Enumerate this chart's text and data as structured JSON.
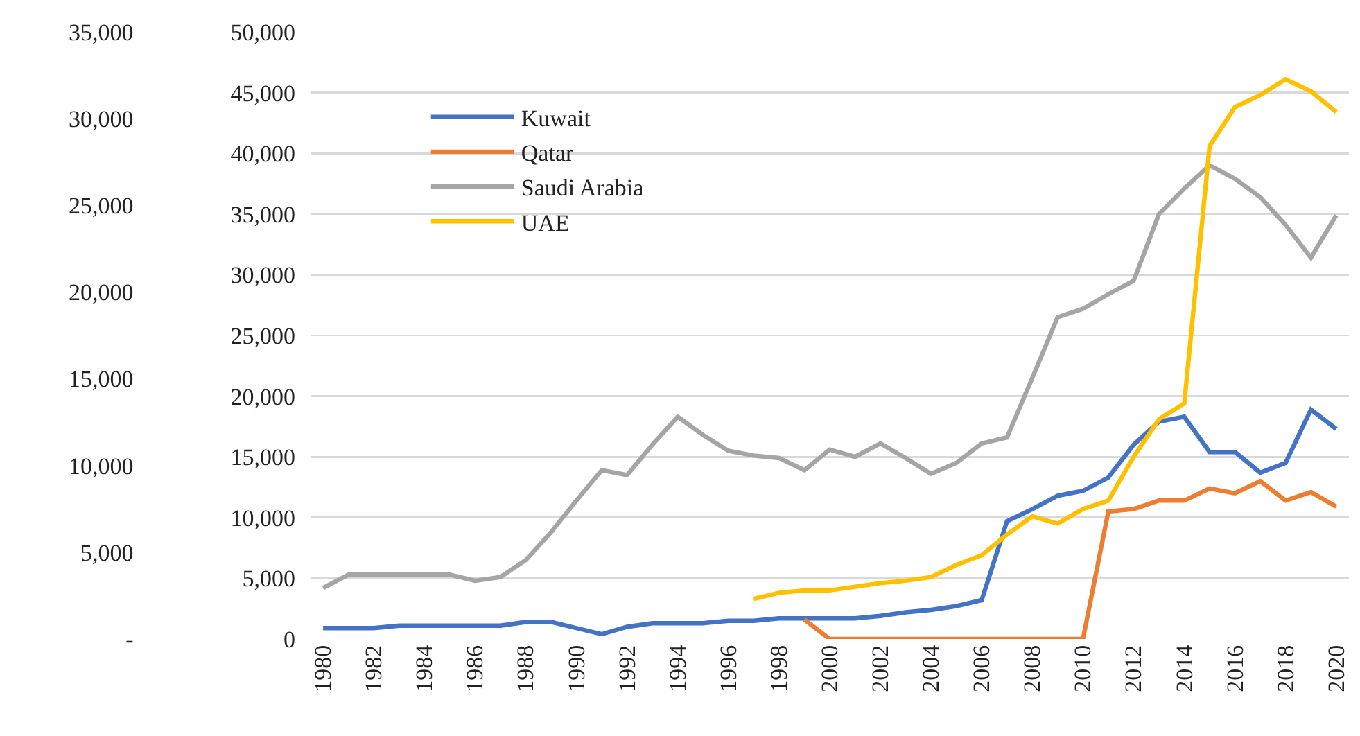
{
  "chart_data": {
    "type": "line",
    "x": [
      1980,
      1981,
      1982,
      1983,
      1984,
      1985,
      1986,
      1987,
      1988,
      1989,
      1990,
      1991,
      1992,
      1993,
      1994,
      1995,
      1996,
      1997,
      1998,
      1999,
      2000,
      2001,
      2002,
      2003,
      2004,
      2005,
      2006,
      2007,
      2008,
      2009,
      2010,
      2011,
      2012,
      2013,
      2014,
      2015,
      2016,
      2017,
      2018,
      2019,
      2020
    ],
    "series": [
      {
        "name": "Kuwait",
        "color": "#4472c4",
        "values": [
          900,
          900,
          900,
          1100,
          1100,
          1100,
          1100,
          1100,
          1400,
          1400,
          900,
          400,
          1000,
          1300,
          1300,
          1300,
          1500,
          1500,
          1700,
          1700,
          1700,
          1700,
          1900,
          2200,
          2400,
          2700,
          3200,
          9700,
          10700,
          11800,
          12200,
          13300,
          16000,
          17900,
          18300,
          15400,
          15400,
          13700,
          14500,
          18900,
          17300
        ]
      },
      {
        "name": "Qatar",
        "color": "#ed7d31",
        "values": [
          null,
          null,
          null,
          null,
          null,
          null,
          null,
          null,
          null,
          null,
          null,
          null,
          null,
          null,
          null,
          null,
          null,
          null,
          null,
          1600,
          0,
          0,
          0,
          0,
          0,
          0,
          0,
          0,
          0,
          0,
          0,
          10500,
          10700,
          11400,
          11400,
          12400,
          12000,
          13000,
          11400,
          12100,
          10900
        ]
      },
      {
        "name": "Saudi Arabia",
        "color": "#a5a5a5",
        "values": [
          4200,
          5300,
          5300,
          5300,
          5300,
          5300,
          4800,
          5100,
          6500,
          8800,
          11400,
          13900,
          13500,
          16000,
          18300,
          16800,
          15500,
          15100,
          14900,
          13900,
          15600,
          15000,
          16100,
          14900,
          13600,
          14500,
          16100,
          16600,
          21500,
          26500,
          27200,
          28400,
          29500,
          35000,
          37100,
          39000,
          37900,
          36400,
          34100,
          31400,
          34900
        ]
      },
      {
        "name": "UAE",
        "color": "#ffc000",
        "values": [
          null,
          null,
          null,
          null,
          null,
          null,
          null,
          null,
          null,
          null,
          null,
          null,
          null,
          null,
          null,
          null,
          null,
          3300,
          3800,
          4000,
          4000,
          4300,
          4600,
          4800,
          5100,
          6100,
          6900,
          8600,
          10100,
          9500,
          10700,
          11400,
          15000,
          18100,
          19400,
          40600,
          43800,
          44800,
          46100,
          45100,
          43400
        ]
      }
    ],
    "xlim": [
      1979.5,
      2020.5
    ],
    "xticks": [
      1980,
      1982,
      1984,
      1986,
      1988,
      1990,
      1992,
      1994,
      1996,
      1998,
      2000,
      2002,
      2004,
      2006,
      2008,
      2010,
      2012,
      2014,
      2016,
      2018,
      2020
    ],
    "ylim": [
      0,
      50000
    ],
    "yticks": [
      0,
      {
        "value": 5000,
        "label": "5,000"
      },
      {
        "value": 10000,
        "label": "10,000"
      },
      {
        "value": 15000,
        "label": "15,000"
      },
      {
        "value": 20000,
        "label": "20,000"
      },
      {
        "value": 25000,
        "label": "25,000"
      },
      {
        "value": 30000,
        "label": "30,000"
      },
      {
        "value": 35000,
        "label": "35,000"
      },
      {
        "value": 40000,
        "label": "40,000"
      },
      {
        "value": 45000,
        "label": "45,000"
      },
      {
        "value": 50000,
        "label": "50,000"
      }
    ],
    "y2lim": [
      0,
      35000
    ],
    "y2ticks": [
      {
        "value": 0,
        "label": "-"
      },
      {
        "value": 5000,
        "label": "5,000"
      },
      {
        "value": 10000,
        "label": "10,000"
      },
      {
        "value": 15000,
        "label": "15,000"
      },
      {
        "value": 20000,
        "label": "20,000"
      },
      {
        "value": 25000,
        "label": "25,000"
      },
      {
        "value": 30000,
        "label": "30,000"
      },
      {
        "value": 35000,
        "label": "35,000"
      }
    ],
    "grid": "y",
    "legend": "top left"
  }
}
